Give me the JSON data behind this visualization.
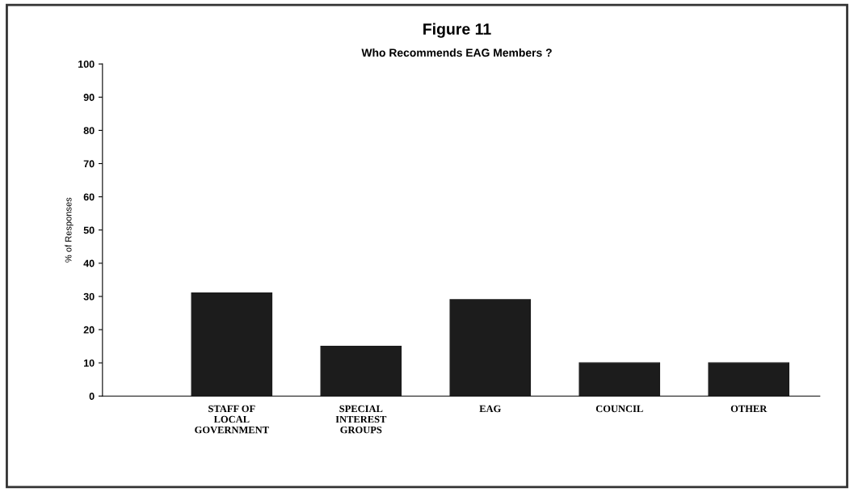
{
  "chart_data": {
    "type": "bar",
    "title": "Figure 11",
    "subtitle": "Who Recommends EAG Members ?",
    "ylabel": "% of Responses",
    "categories": [
      "STAFF OF\nLOCAL\nGOVERNMENT",
      "SPECIAL\nINTEREST\nGROUPS",
      "EAG",
      "COUNCIL",
      "OTHER"
    ],
    "values": [
      31,
      15,
      29,
      10,
      10
    ],
    "color": "#1c1c1c",
    "ylim": [
      0,
      100
    ],
    "yticks": [
      0,
      10,
      20,
      30,
      40,
      50,
      60,
      70,
      80,
      90,
      100
    ],
    "grid": false
  }
}
